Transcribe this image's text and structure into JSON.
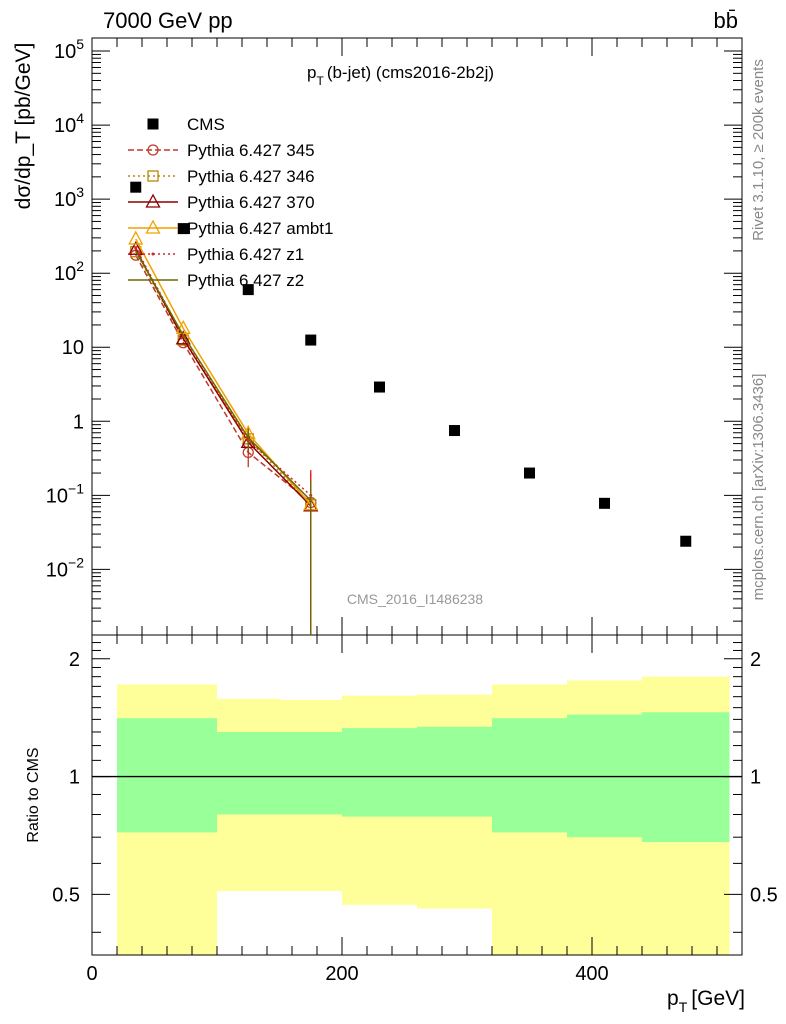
{
  "header": {
    "energy_label": "7000 GeV pp",
    "process_label": "bb̄"
  },
  "side_labels": {
    "rivet": "Rivet 3.1.10, ≥ 200k events",
    "mcplots": "mcplots.cern.ch [arXiv:1306.3436]"
  },
  "watermark": "CMS_2016_I1486238",
  "chart_data": [
    {
      "type": "scatter",
      "title": "p_T(b-jet) (cms2016-2b2j)",
      "title_main": "p",
      "title_sub": "T",
      "title_rest": "(b-jet) (cms2016-2b2j)",
      "ylabel": "dσ/dp_T [pb/GeV]",
      "xlim": [
        0,
        520
      ],
      "ylim": [
        0.0013,
        150000
      ],
      "yscale": "log",
      "y_ticks": [
        {
          "v": 100000,
          "base": "10",
          "exp": "5"
        },
        {
          "v": 10000,
          "base": "10",
          "exp": "4"
        },
        {
          "v": 1000,
          "base": "10",
          "exp": "3"
        },
        {
          "v": 100,
          "base": "10",
          "exp": "2"
        },
        {
          "v": 10,
          "base": "10",
          "exp": ""
        },
        {
          "v": 1,
          "base": "1",
          "exp": ""
        },
        {
          "v": 0.1,
          "base": "10",
          "exp": "−1"
        },
        {
          "v": 0.01,
          "base": "10",
          "exp": "−2"
        }
      ],
      "legend_position": "top-left",
      "series": [
        {
          "name": "CMS",
          "color": "#000000",
          "marker": "square",
          "line": "none",
          "x": [
            35,
            73,
            125,
            175,
            230,
            290,
            350,
            410,
            475
          ],
          "y": [
            1450,
            400,
            60,
            12.5,
            2.9,
            0.75,
            0.2,
            0.078,
            0.024
          ]
        },
        {
          "name": "Pythia 6.427 345",
          "color": "#c0392b",
          "marker": "circle-open",
          "line": "dashed",
          "x": [
            35,
            73,
            125,
            175
          ],
          "y": [
            175,
            11.5,
            0.38,
            0.08
          ],
          "err_lo": [
            0,
            0,
            0.14,
            0.08
          ],
          "err_hi": [
            0,
            0,
            0.12,
            0.12
          ]
        },
        {
          "name": "Pythia 6.427 346",
          "color": "#b8860b",
          "marker": "square-open",
          "line": "dotted",
          "x": [
            35,
            73,
            125,
            175
          ],
          "y": [
            195,
            12.5,
            0.58,
            0.075
          ],
          "err_lo": [
            0,
            0,
            0.2,
            0.075
          ],
          "err_hi": [
            0,
            0,
            0.2,
            0.1
          ]
        },
        {
          "name": "Pythia 6.427 370",
          "color": "#8b0000",
          "marker": "triangle-open",
          "line": "solid",
          "x": [
            35,
            73,
            125,
            175
          ],
          "y": [
            210,
            13,
            0.52,
            0.072
          ],
          "err_lo": [
            0,
            0,
            0.15,
            0.072
          ],
          "err_hi": [
            0,
            0,
            0.15,
            0.08
          ]
        },
        {
          "name": "Pythia 6.427 ambt1",
          "color": "#f0a000",
          "marker": "triangle-open",
          "line": "solid",
          "x": [
            35,
            73,
            125,
            175
          ],
          "y": [
            290,
            18,
            0.68,
            0.075
          ],
          "err_lo": [
            0,
            0,
            0.2,
            0.075
          ],
          "err_hi": [
            0,
            0,
            0.2,
            0.1
          ]
        },
        {
          "name": "Pythia 6.427 z1",
          "color": "#e02020",
          "marker": "dot",
          "line": "dotted",
          "x": [
            35,
            73,
            125,
            175
          ],
          "y": [
            220,
            14,
            0.55,
            0.1
          ],
          "err_lo": [
            0,
            0,
            0.18,
            0.1
          ],
          "err_hi": [
            0,
            0,
            0.18,
            0.12
          ]
        },
        {
          "name": "Pythia 6.427 z2",
          "color": "#6b6b00",
          "marker": "none",
          "line": "solid",
          "x": [
            35,
            73,
            125,
            175
          ],
          "y": [
            200,
            14.5,
            0.6,
            0.085
          ],
          "err_lo": [
            0,
            0,
            0.2,
            0.085
          ],
          "err_hi": [
            0,
            0,
            0.2,
            0.07
          ]
        }
      ]
    },
    {
      "type": "area",
      "ylabel": "Ratio to CMS",
      "xlabel": "p_T [GeV]",
      "xlabel_main": "p",
      "xlabel_sub": "T",
      "xlabel_rest": "[GeV]",
      "xlim": [
        0,
        520
      ],
      "ylim": [
        0.35,
        2.3
      ],
      "x_ticks": [
        0,
        200,
        400
      ],
      "y_ticks": [
        0.5,
        1,
        2
      ],
      "reference_line": 1,
      "bands": [
        {
          "name": "yellow",
          "color": "#ffff99",
          "bins": [
            {
              "x0": 20,
              "x1": 100,
              "lo": 0.35,
              "hi": 1.72
            },
            {
              "x0": 100,
              "x1": 150,
              "lo": 0.51,
              "hi": 1.58
            },
            {
              "x0": 150,
              "x1": 200,
              "lo": 0.51,
              "hi": 1.57
            },
            {
              "x0": 200,
              "x1": 260,
              "lo": 0.47,
              "hi": 1.61
            },
            {
              "x0": 260,
              "x1": 320,
              "lo": 0.46,
              "hi": 1.62
            },
            {
              "x0": 320,
              "x1": 380,
              "lo": 0.35,
              "hi": 1.72
            },
            {
              "x0": 380,
              "x1": 440,
              "lo": 0.35,
              "hi": 1.76
            },
            {
              "x0": 440,
              "x1": 510,
              "lo": 0.35,
              "hi": 1.8
            }
          ]
        },
        {
          "name": "green",
          "color": "#99ff99",
          "bins": [
            {
              "x0": 20,
              "x1": 100,
              "lo": 0.72,
              "hi": 1.41
            },
            {
              "x0": 100,
              "x1": 150,
              "lo": 0.8,
              "hi": 1.3
            },
            {
              "x0": 150,
              "x1": 200,
              "lo": 0.8,
              "hi": 1.3
            },
            {
              "x0": 200,
              "x1": 260,
              "lo": 0.79,
              "hi": 1.33
            },
            {
              "x0": 260,
              "x1": 320,
              "lo": 0.79,
              "hi": 1.34
            },
            {
              "x0": 320,
              "x1": 380,
              "lo": 0.72,
              "hi": 1.41
            },
            {
              "x0": 380,
              "x1": 440,
              "lo": 0.7,
              "hi": 1.44
            },
            {
              "x0": 440,
              "x1": 510,
              "lo": 0.68,
              "hi": 1.46
            }
          ]
        }
      ]
    }
  ]
}
